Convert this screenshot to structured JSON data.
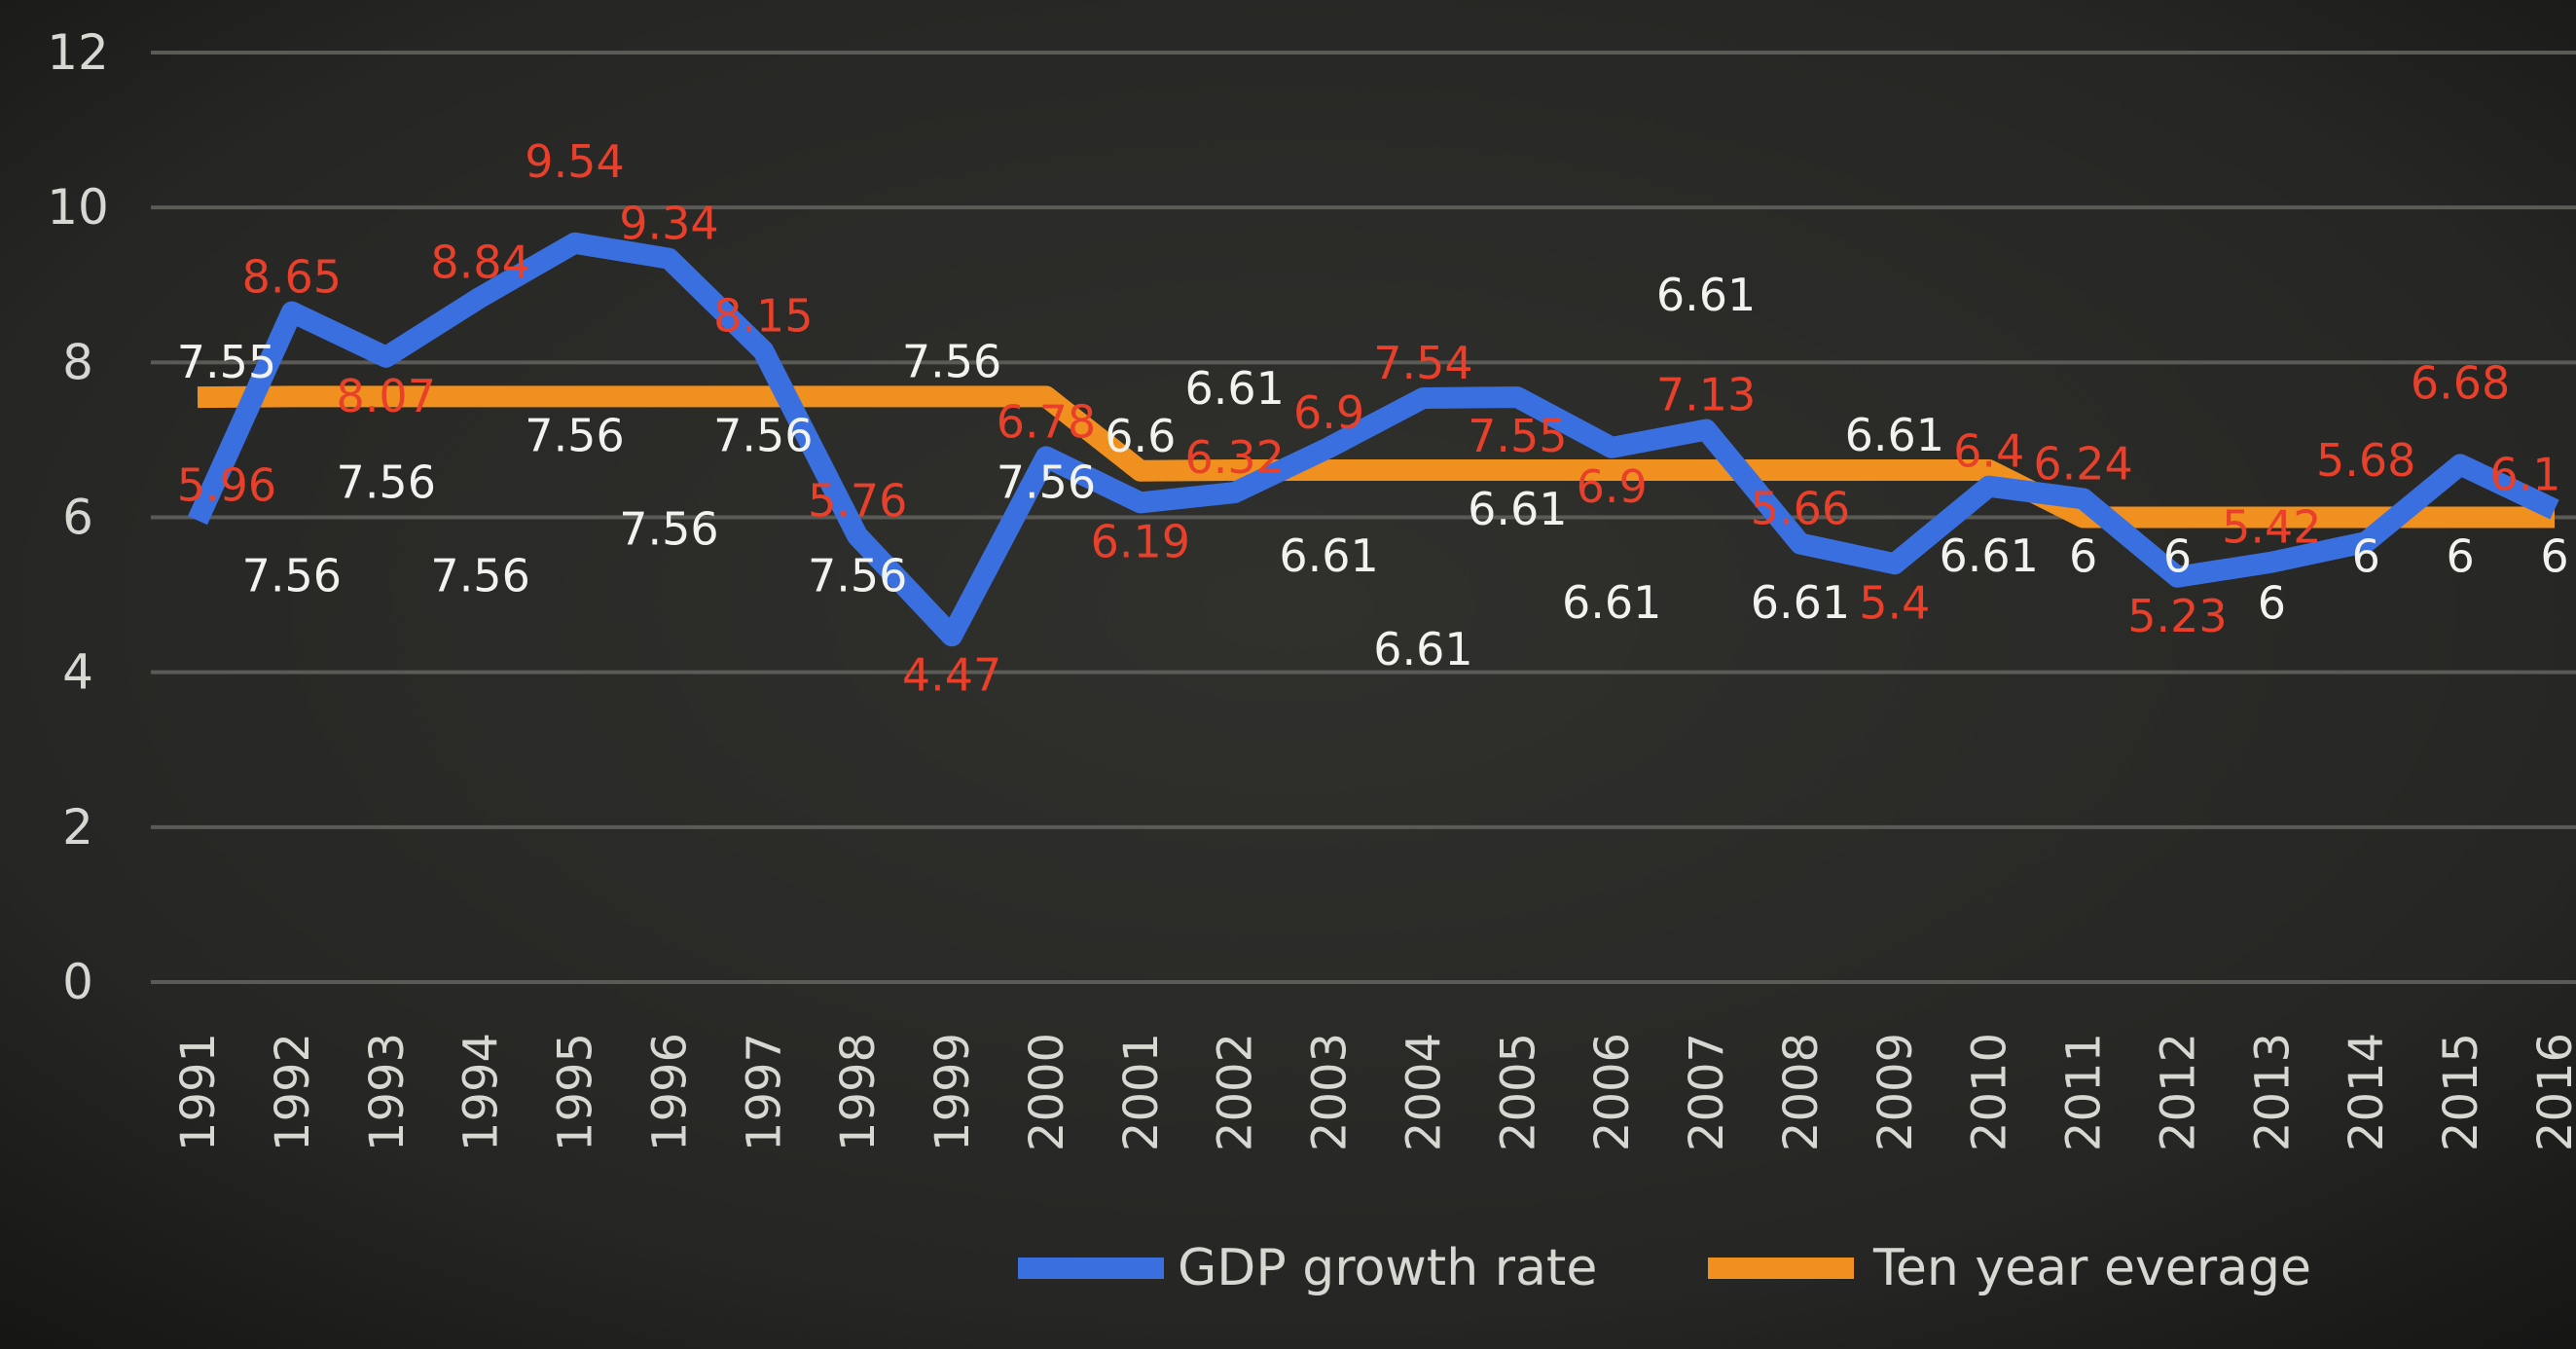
{
  "chart_data": {
    "type": "line",
    "title": "",
    "xlabel": "",
    "ylabel": "",
    "ylim": [
      0,
      12
    ],
    "yticks": [
      0,
      2,
      4,
      6,
      8,
      10,
      12
    ],
    "grid": true,
    "legend_placement": "bottom",
    "x": [
      "1991",
      "1992",
      "1993",
      "1994",
      "1995",
      "1996",
      "1997",
      "1998",
      "1999",
      "2000",
      "2001",
      "2002",
      "2003",
      "2004",
      "2005",
      "2006",
      "2007",
      "2008",
      "2009",
      "2010",
      "2011",
      "2012",
      "2013",
      "2014",
      "2015",
      "2016"
    ],
    "series": [
      {
        "name": "GDP growth rate",
        "color": "#3a6fe0",
        "label_color": "#e8402a",
        "values": [
          5.96,
          8.65,
          8.07,
          8.84,
          9.54,
          9.34,
          8.15,
          5.76,
          4.47,
          6.78,
          6.19,
          6.32,
          6.9,
          7.54,
          7.55,
          6.9,
          7.13,
          5.66,
          5.4,
          6.4,
          6.24,
          5.23,
          5.42,
          5.68,
          6.68,
          6.1
        ]
      },
      {
        "name": "Ten year everage",
        "color": "#f0901e",
        "label_color": "#f2f2ee",
        "values": [
          7.55,
          7.56,
          7.56,
          7.56,
          7.56,
          7.56,
          7.56,
          7.56,
          7.56,
          7.56,
          6.6,
          6.61,
          6.61,
          6.61,
          6.61,
          6.61,
          6.61,
          6.61,
          6.61,
          6.61,
          6,
          6,
          6,
          6,
          6,
          6
        ]
      }
    ]
  }
}
